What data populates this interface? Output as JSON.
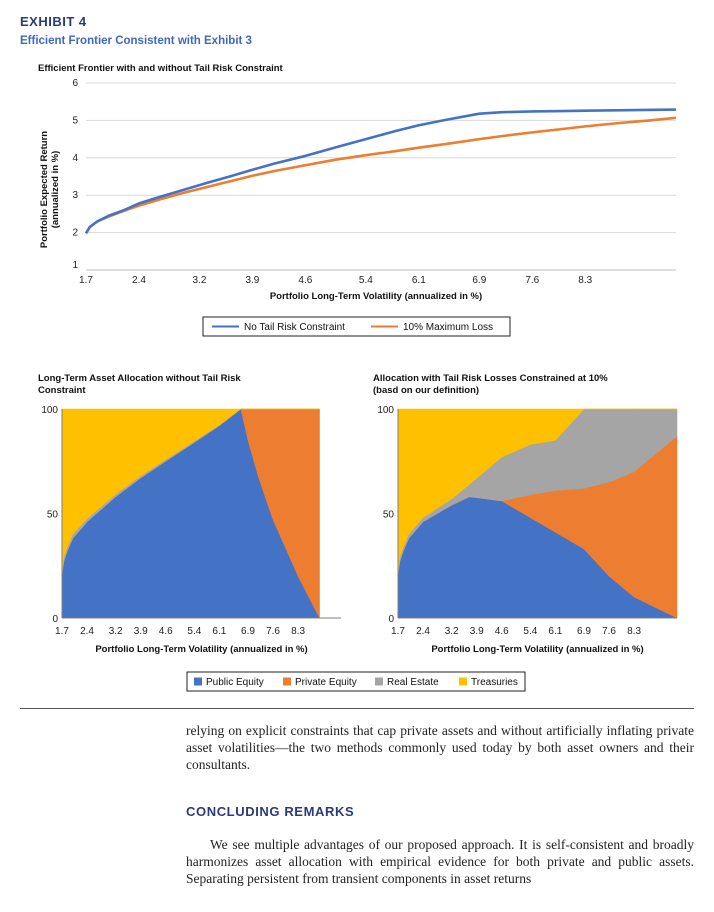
{
  "exhibit": {
    "label": "EXHIBIT 4",
    "title": "Efficient Frontier Consistent with Exhibit 3"
  },
  "chart_data": [
    {
      "type": "line",
      "title": "Efficient Frontier with and without Tail Risk Constraint",
      "xlabel": "Portfolio Long-Term Volatility (annualized in %)",
      "ylabel": "Portfolio Expected Return (annualized in %)",
      "xlim": [
        1.7,
        9.5
      ],
      "ylim": [
        1,
        6
      ],
      "x_ticks": [
        "1.7",
        "2.4",
        "3.2",
        "3.9",
        "4.6",
        "5.4",
        "6.1",
        "6.9",
        "7.6",
        "8.3"
      ],
      "y_ticks": [
        "1",
        "2",
        "3",
        "4",
        "5",
        "6"
      ],
      "legend_position": "bottom",
      "grid": true,
      "colors": {
        "no_constraint": "#4472c4",
        "max_loss": "#ed7d31"
      },
      "series": [
        {
          "name": "No Tail Risk Constraint",
          "x": [
            1.7,
            1.75,
            1.85,
            2.0,
            2.2,
            2.4,
            2.7,
            3.0,
            3.3,
            3.6,
            3.9,
            4.2,
            4.6,
            5.0,
            5.4,
            5.8,
            6.1,
            6.5,
            6.9,
            7.2,
            7.6,
            8.0,
            8.3,
            8.7,
            9.1,
            9.5
          ],
          "y": [
            1.98,
            2.15,
            2.3,
            2.45,
            2.6,
            2.78,
            2.97,
            3.15,
            3.33,
            3.5,
            3.68,
            3.85,
            4.05,
            4.28,
            4.5,
            4.72,
            4.87,
            5.03,
            5.18,
            5.22,
            5.24,
            5.25,
            5.26,
            5.27,
            5.28,
            5.29
          ]
        },
        {
          "name": "10% Maximum Loss",
          "x": [
            1.7,
            1.75,
            1.85,
            2.0,
            2.2,
            2.4,
            2.7,
            3.0,
            3.3,
            3.6,
            3.9,
            4.2,
            4.6,
            5.0,
            5.4,
            5.8,
            6.1,
            6.5,
            6.9,
            7.2,
            7.6,
            8.0,
            8.3,
            8.7,
            9.1,
            9.5
          ],
          "y": [
            1.98,
            2.15,
            2.3,
            2.43,
            2.58,
            2.72,
            2.9,
            3.07,
            3.22,
            3.37,
            3.52,
            3.65,
            3.8,
            3.95,
            4.07,
            4.18,
            4.27,
            4.38,
            4.5,
            4.58,
            4.68,
            4.77,
            4.84,
            4.92,
            4.99,
            5.07
          ]
        }
      ]
    },
    {
      "type": "area",
      "title": "Long-Term Asset Allocation without Tail Risk Constraint",
      "xlabel": "Portfolio Long-Term Volatility (annualized in %)",
      "ylabel": "",
      "xlim": [
        1.7,
        9.5
      ],
      "ylim": [
        0,
        100
      ],
      "x_ticks": [
        "1.7",
        "2.4",
        "3.2",
        "3.9",
        "4.6",
        "5.4",
        "6.1",
        "6.9",
        "7.6",
        "8.3"
      ],
      "y_ticks": [
        "0",
        "50",
        "100"
      ],
      "stacked": true,
      "x": [
        1.7,
        1.75,
        1.85,
        2.0,
        2.4,
        3.2,
        3.9,
        4.6,
        5.4,
        6.1,
        6.7,
        6.9,
        7.2,
        7.6,
        8.3,
        8.9
      ],
      "series": [
        {
          "name": "Public Equity",
          "color": "#4472c4",
          "values": [
            20,
            27,
            32,
            38,
            46,
            58,
            67,
            75,
            84,
            92,
            100,
            85,
            67,
            47,
            20,
            0
          ]
        },
        {
          "name": "Private Equity",
          "color": "#ed7d31",
          "values": [
            0,
            0,
            0,
            0,
            0,
            0,
            0,
            0,
            0,
            0,
            0,
            15,
            33,
            53,
            80,
            100
          ]
        },
        {
          "name": "Real Estate",
          "color": "#a5a5a5",
          "values": [
            2,
            2,
            2,
            2,
            1.5,
            1.2,
            1,
            0.8,
            0.6,
            0.4,
            0,
            0,
            0,
            0,
            0,
            0
          ]
        },
        {
          "name": "Treasuries",
          "color": "#ffc000",
          "values": [
            78,
            71,
            66,
            60,
            52.5,
            40.8,
            32,
            24.2,
            15.4,
            7.6,
            0,
            0,
            0,
            0,
            0,
            0
          ]
        }
      ]
    },
    {
      "type": "area",
      "title": "Allocation with Tail Risk Losses Constrained at 10% (basd on our definition)",
      "xlabel": "Portfolio Long-Term Volatility (annualized in %)",
      "ylabel": "",
      "xlim": [
        1.7,
        9.5
      ],
      "ylim": [
        0,
        100
      ],
      "x_ticks": [
        "1.7",
        "2.4",
        "3.2",
        "3.9",
        "4.6",
        "5.4",
        "6.1",
        "6.9",
        "7.6",
        "8.3"
      ],
      "y_ticks": [
        "0",
        "50",
        "100"
      ],
      "stacked": true,
      "x": [
        1.7,
        1.75,
        1.85,
        2.0,
        2.4,
        3.2,
        3.7,
        4.6,
        5.4,
        6.1,
        6.9,
        7.6,
        8.3,
        9.5
      ],
      "series": [
        {
          "name": "Public Equity",
          "color": "#4472c4",
          "values": [
            20,
            27,
            32,
            38,
            46,
            54,
            58,
            56,
            48,
            41,
            33,
            20,
            10,
            0
          ]
        },
        {
          "name": "Private Equity",
          "color": "#ed7d31",
          "values": [
            0,
            0,
            0,
            0,
            0,
            0,
            0,
            0,
            11,
            20,
            29,
            45,
            60,
            87
          ]
        },
        {
          "name": "Real Estate",
          "color": "#a5a5a5",
          "values": [
            2,
            2,
            2,
            2,
            2,
            3,
            6,
            21,
            24,
            24,
            38,
            35,
            30,
            13
          ]
        },
        {
          "name": "Treasuries",
          "color": "#ffc000",
          "values": [
            78,
            71,
            66,
            60,
            52,
            43,
            36,
            23,
            17,
            15,
            0,
            0,
            0,
            0
          ]
        }
      ]
    }
  ],
  "bottom_legend": [
    "Public Equity",
    "Private Equity",
    "Real Estate",
    "Treasuries"
  ],
  "text": {
    "para1": "relying on explicit constraints that cap private assets and without artificially inflating private asset volatilities—the two methods commonly used today by both asset owners and their consultants.",
    "heading": "CONCLUDING REMARKS",
    "para2": "We see multiple advantages of our proposed approach. It is self-consistent and broadly harmonizes asset allocation with empirical evidence for both private and public assets. Separating persistent from transient components in asset returns"
  }
}
